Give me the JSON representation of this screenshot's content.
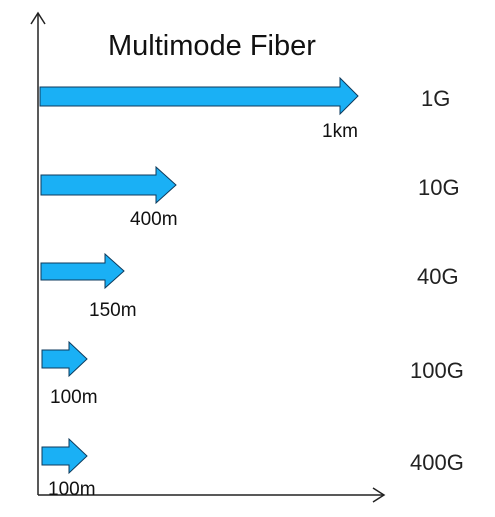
{
  "title": "Multimode Fiber",
  "colors": {
    "arrow_fill": "#1ab0f5",
    "arrow_stroke": "#0d3a5c",
    "axis": "#222222",
    "text": "#111111"
  },
  "rows": [
    {
      "speed": "1G",
      "distance": "1km",
      "distance_value_m": 1000
    },
    {
      "speed": "10G",
      "distance": "400m",
      "distance_value_m": 400
    },
    {
      "speed": "40G",
      "distance": "150m",
      "distance_value_m": 150
    },
    {
      "speed": "100G",
      "distance": "100m",
      "distance_value_m": 100
    },
    {
      "speed": "400G",
      "distance": "100m",
      "distance_value_m": 100
    }
  ]
}
